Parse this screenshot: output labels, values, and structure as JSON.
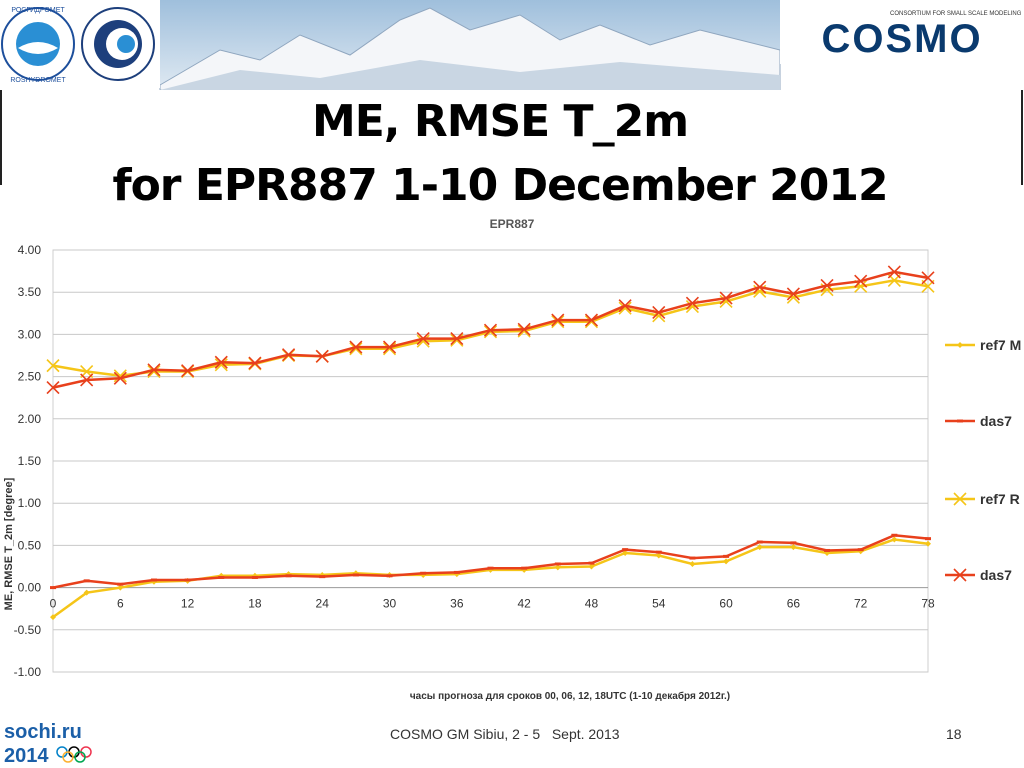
{
  "slide": {
    "title_line1": "ME, RMSE T_2m",
    "title_line2": "for EPR887 1-10 December 2012",
    "footer": "COSMO GM Sibiu, 2 - 5   Sept. 2013",
    "page_number": "18",
    "logos": {
      "roshydromet": "РОСГИДРОМЕТ",
      "roshydromet_latin": "ROSHYDROMET",
      "cosmo": "COSMO",
      "cosmo_tagline": "CONSORTIUM FOR SMALL SCALE MODELING",
      "sochi_line1": "sochi.ru",
      "sochi_line2": "2014"
    }
  },
  "chart_data": {
    "type": "line",
    "title": "EPR887",
    "xlabel": "часы прогноза для сроков 00, 06, 12, 18UTC (1-10 декабря 2012г.)",
    "ylabel": "ME, RMSE T_2m [degree]",
    "ylim": [
      -1.0,
      4.0
    ],
    "yticks": [
      "-1.00",
      "-0.50",
      "0.00",
      "0.50",
      "1.00",
      "1.50",
      "2.00",
      "2.50",
      "3.00",
      "3.50",
      "4.00"
    ],
    "xticks": [
      "0",
      "6",
      "12",
      "18",
      "24",
      "30",
      "36",
      "42",
      "48",
      "54",
      "60",
      "66",
      "72",
      "78"
    ],
    "x": [
      0,
      3,
      6,
      9,
      12,
      15,
      18,
      21,
      24,
      27,
      30,
      33,
      36,
      39,
      42,
      45,
      48,
      51,
      54,
      57,
      60,
      63,
      66,
      69,
      72,
      75,
      78
    ],
    "grid": true,
    "legend_position": "right",
    "series": [
      {
        "name": "ref7 M",
        "color": "#f5c518",
        "marker": "diamond",
        "values": [
          -0.35,
          -0.06,
          0.0,
          0.07,
          0.08,
          0.14,
          0.14,
          0.16,
          0.15,
          0.17,
          0.15,
          0.15,
          0.16,
          0.21,
          0.21,
          0.24,
          0.25,
          0.41,
          0.38,
          0.28,
          0.31,
          0.48,
          0.48,
          0.41,
          0.43,
          0.57,
          0.52
        ]
      },
      {
        "name": "das7",
        "color": "#e8401c",
        "marker": "dash",
        "values": [
          0.0,
          0.08,
          0.04,
          0.09,
          0.09,
          0.12,
          0.12,
          0.14,
          0.13,
          0.15,
          0.14,
          0.17,
          0.18,
          0.23,
          0.23,
          0.28,
          0.29,
          0.45,
          0.42,
          0.35,
          0.37,
          0.54,
          0.53,
          0.44,
          0.45,
          0.62,
          0.58
        ]
      },
      {
        "name": "ref7 R",
        "color": "#f5c518",
        "marker": "x",
        "values": [
          2.63,
          2.56,
          2.51,
          2.56,
          2.56,
          2.64,
          2.65,
          2.75,
          2.74,
          2.83,
          2.83,
          2.92,
          2.93,
          3.03,
          3.04,
          3.15,
          3.15,
          3.31,
          3.22,
          3.33,
          3.39,
          3.51,
          3.44,
          3.53,
          3.57,
          3.64,
          3.57
        ]
      },
      {
        "name": "das7",
        "color": "#e8401c",
        "marker": "x",
        "values": [
          2.37,
          2.46,
          2.48,
          2.58,
          2.57,
          2.67,
          2.66,
          2.76,
          2.74,
          2.85,
          2.85,
          2.95,
          2.95,
          3.05,
          3.06,
          3.17,
          3.17,
          3.34,
          3.26,
          3.37,
          3.43,
          3.56,
          3.48,
          3.58,
          3.63,
          3.74,
          3.67
        ]
      }
    ]
  }
}
